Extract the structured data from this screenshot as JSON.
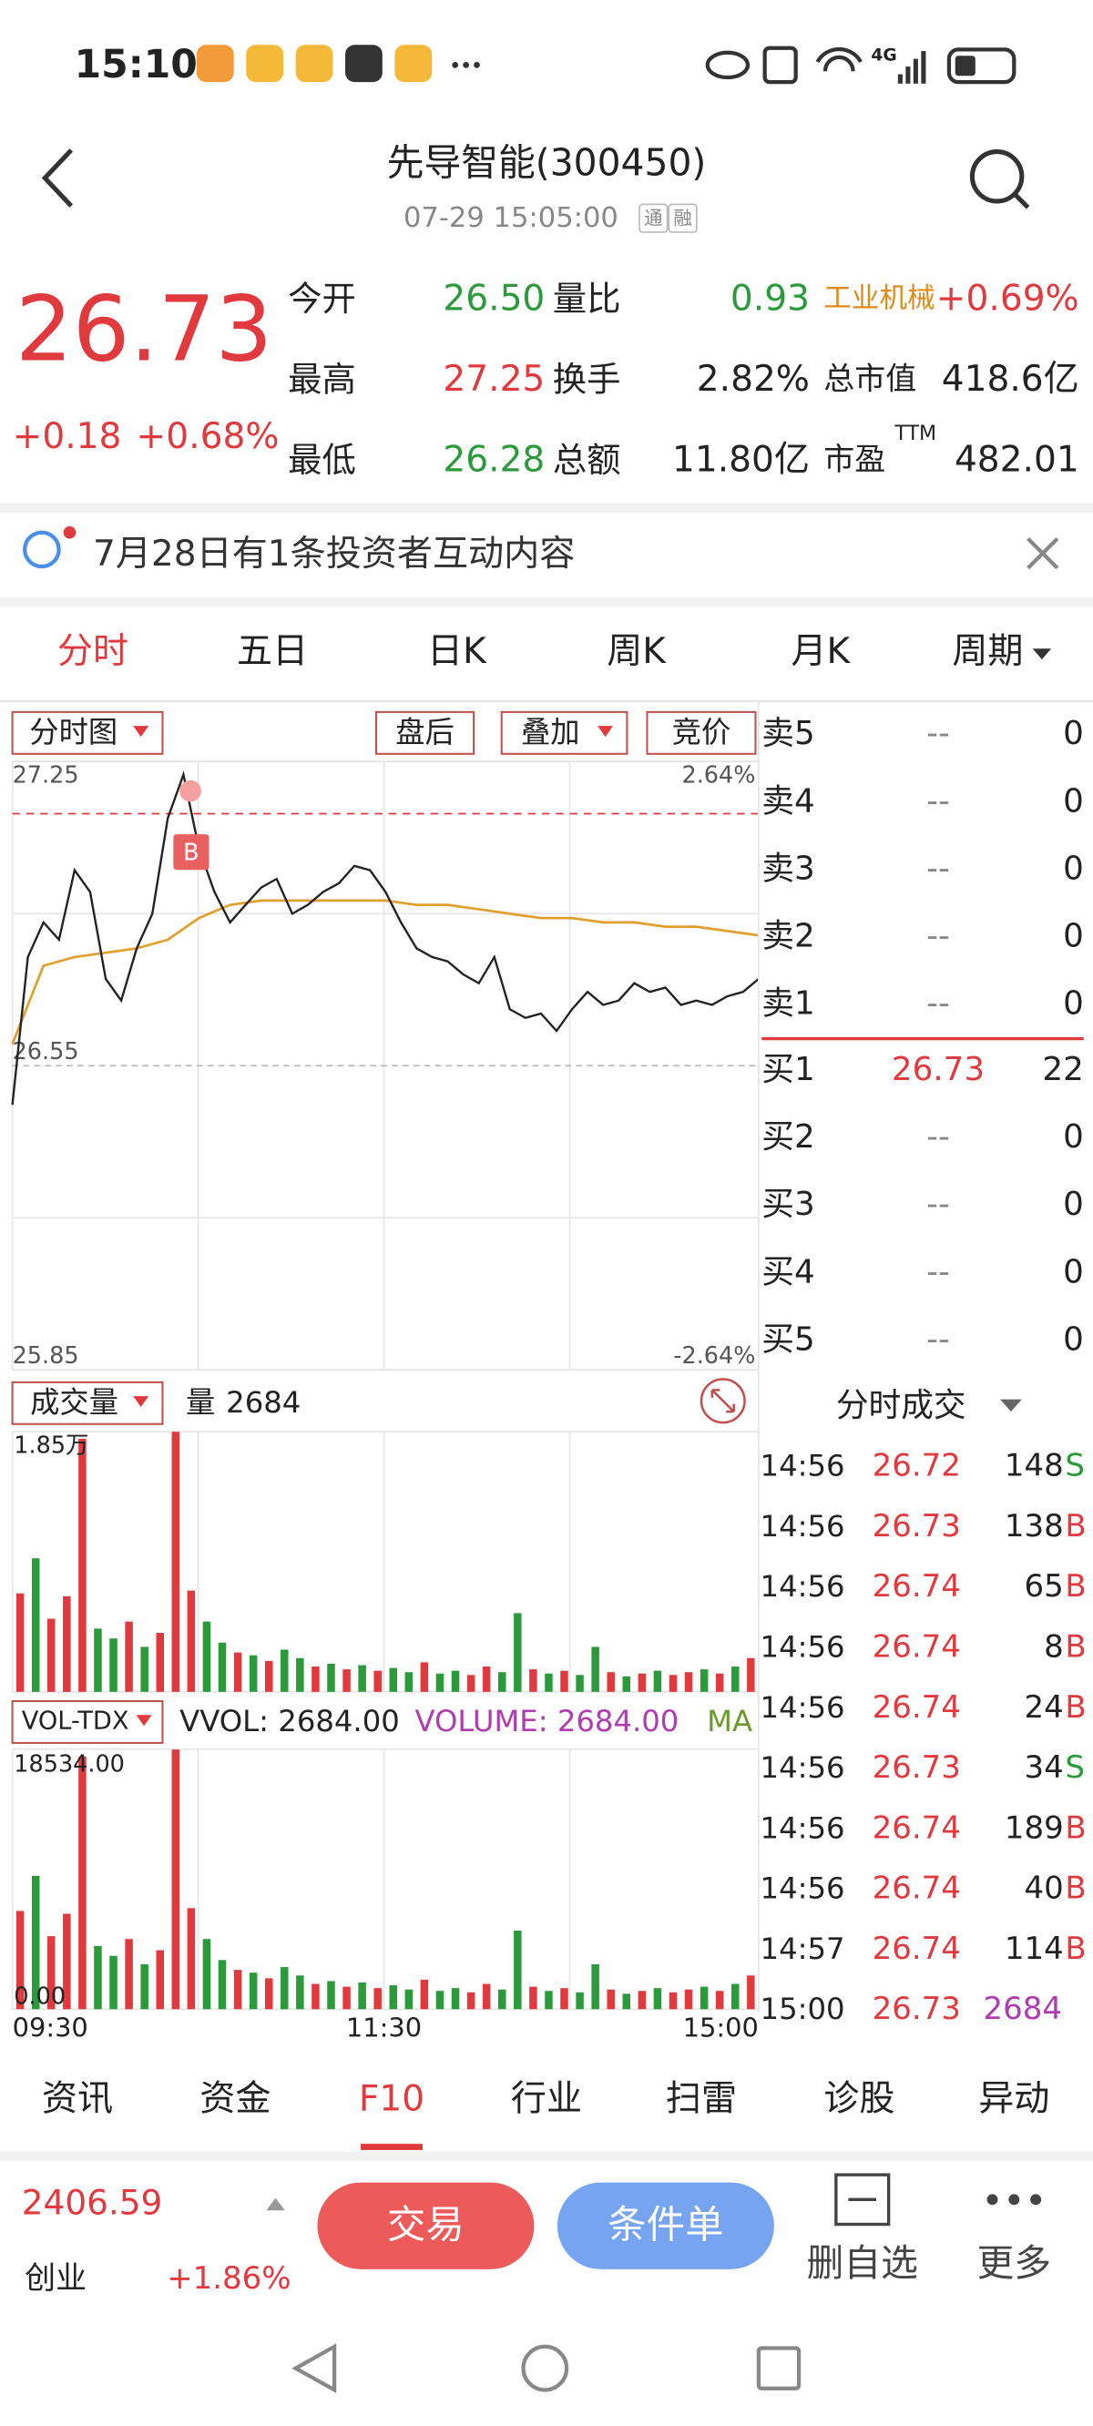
{
  "status_bar": {
    "time": "15:10",
    "network": "4G"
  },
  "header": {
    "title": "先导智能(300450)",
    "timestamp": "07-29 15:05:00",
    "badges": [
      "通",
      "融"
    ]
  },
  "quote": {
    "price": "26.73",
    "change": "+0.18",
    "change_pct": "+0.68%",
    "fields": [
      {
        "label": "今开",
        "value": "26.50",
        "color": "#2a9a3a"
      },
      {
        "label": "量比",
        "value": "0.93",
        "color": "#2a9a3a"
      },
      {
        "label": "工业机械",
        "value": "+0.69%",
        "color": "#e0393e"
      },
      {
        "label": "最高",
        "value": "27.25",
        "color": "#e0393e"
      },
      {
        "label": "换手",
        "value": "2.82%",
        "color": "#222222"
      },
      {
        "label": "总市值",
        "value": "418.6亿",
        "color": "#222222"
      },
      {
        "label": "最低",
        "value": "26.28",
        "color": "#2a9a3a"
      },
      {
        "label": "总额",
        "value": "11.80亿",
        "color": "#222222"
      },
      {
        "label": "市盈",
        "sup": "TTM",
        "value": "482.01",
        "color": "#222222"
      }
    ]
  },
  "notice": "7月28日有1条投资者互动内容",
  "tabs": [
    "分时",
    "五日",
    "日K",
    "周K",
    "月K",
    "周期"
  ],
  "chart_toolbar": [
    "分时图",
    "盘后",
    "叠加",
    "竞价"
  ],
  "intraday": {
    "ylim": [
      25.85,
      27.25
    ],
    "yticks": [
      27.25,
      26.55,
      25.85
    ],
    "pct_labels": [
      "2.64%",
      "-2.64%"
    ],
    "price_color": "#222222",
    "avg_color": "#e0a030",
    "marker": "B",
    "reference_line": 27.13,
    "price": [
      26.46,
      26.8,
      26.88,
      26.84,
      27.0,
      26.95,
      26.75,
      26.7,
      26.82,
      26.9,
      27.12,
      27.22,
      27.05,
      26.95,
      26.88,
      26.92,
      26.96,
      26.98,
      26.9,
      26.92,
      26.95,
      26.97,
      27.01,
      27.0,
      26.95,
      26.88,
      26.82,
      26.8,
      26.79,
      26.76,
      26.74,
      26.8,
      26.68,
      26.66,
      26.67,
      26.63,
      26.68,
      26.72,
      26.69,
      26.7,
      26.74,
      26.72,
      26.73,
      26.69,
      26.7,
      26.69,
      26.71,
      26.72,
      26.75
    ],
    "avg": [
      26.6,
      26.78,
      26.8,
      26.81,
      26.82,
      26.84,
      26.89,
      26.92,
      26.93,
      26.93,
      26.93,
      26.93,
      26.93,
      26.92,
      26.92,
      26.91,
      26.9,
      26.89,
      26.89,
      26.88,
      26.88,
      26.87,
      26.87,
      26.86,
      26.85
    ]
  },
  "time_labels": [
    "09:30",
    "11:30",
    "15:00"
  ],
  "order_book": [
    {
      "label": "卖5",
      "price": "--",
      "volume": "0"
    },
    {
      "label": "卖4",
      "price": "--",
      "volume": "0"
    },
    {
      "label": "卖3",
      "price": "--",
      "volume": "0"
    },
    {
      "label": "卖2",
      "price": "--",
      "volume": "0"
    },
    {
      "label": "卖1",
      "price": "--",
      "volume": "0"
    },
    {
      "label": "买1",
      "price": "26.73",
      "volume": "22"
    },
    {
      "label": "买2",
      "price": "--",
      "volume": "0"
    },
    {
      "label": "买3",
      "price": "--",
      "volume": "0"
    },
    {
      "label": "买4",
      "price": "--",
      "volume": "0"
    },
    {
      "label": "买5",
      "price": "--",
      "volume": "0"
    }
  ],
  "volume": {
    "title": "成交量",
    "current_label": "量",
    "current_value": "2684",
    "ylim": [
      0,
      18500
    ],
    "yticks": [
      {
        "value": 18500,
        "label": "1.85万"
      }
    ],
    "values": [
      7000,
      9500,
      5200,
      6800,
      18000,
      4500,
      3800,
      5000,
      3200,
      4200,
      18500,
      7200,
      5000,
      3500,
      2800,
      2600,
      2200,
      3000,
      2400,
      1800,
      2000,
      1600,
      1900,
      1500,
      1700,
      1400,
      2100,
      1300,
      1500,
      1200,
      1800,
      1400,
      5600,
      1600,
      1300,
      1500,
      1200,
      3200,
      1400,
      1100,
      1300,
      1500,
      1200,
      1400,
      1600,
      1300,
      1800,
      2400
    ],
    "colors": [
      "#e0393e",
      "#2a9a3a",
      "#e0393e",
      "#e0393e",
      "#e0393e",
      "#2a9a3a",
      "#2a9a3a",
      "#e0393e",
      "#2a9a3a",
      "#e0393e",
      "#e0393e",
      "#e0393e",
      "#2a9a3a",
      "#2a9a3a",
      "#e0393e",
      "#2a9a3a",
      "#e0393e",
      "#2a9a3a",
      "#2a9a3a",
      "#e0393e",
      "#2a9a3a",
      "#e0393e",
      "#2a9a3a",
      "#e0393e",
      "#2a9a3a",
      "#2a9a3a",
      "#e0393e",
      "#2a9a3a",
      "#2a9a3a",
      "#e0393e",
      "#e0393e",
      "#2a9a3a",
      "#2a9a3a",
      "#e0393e",
      "#2a9a3a",
      "#e0393e",
      "#2a9a3a",
      "#2a9a3a",
      "#e0393e",
      "#2a9a3a",
      "#e0393e",
      "#2a9a3a",
      "#e0393e",
      "#e0393e",
      "#2a9a3a",
      "#e0393e",
      "#2a9a3a",
      "#e0393e"
    ]
  },
  "vol_tdx": {
    "title": "VOL-TDX",
    "vvol": "VVOL: 2684.00",
    "volume": "VOLUME: 2684.00",
    "ma": "MA",
    "ylim": [
      0,
      18534
    ],
    "yticks": [
      {
        "value": 18534,
        "label": "18534.00"
      },
      {
        "value": 0,
        "label": "0.00"
      }
    ]
  },
  "trades_title": "分时成交",
  "trades": [
    {
      "time": "14:56",
      "price": "26.72",
      "volume": "148",
      "side": "S"
    },
    {
      "time": "14:56",
      "price": "26.73",
      "volume": "138",
      "side": "B"
    },
    {
      "time": "14:56",
      "price": "26.74",
      "volume": "65",
      "side": "B"
    },
    {
      "time": "14:56",
      "price": "26.74",
      "volume": "8",
      "side": "B"
    },
    {
      "time": "14:56",
      "price": "26.74",
      "volume": "24",
      "side": "B"
    },
    {
      "time": "14:56",
      "price": "26.73",
      "volume": "34",
      "side": "S"
    },
    {
      "time": "14:56",
      "price": "26.74",
      "volume": "189",
      "side": "B"
    },
    {
      "time": "14:56",
      "price": "26.74",
      "volume": "40",
      "side": "B"
    },
    {
      "time": "14:57",
      "price": "26.74",
      "volume": "114",
      "side": "B"
    },
    {
      "time": "15:00",
      "price": "26.73",
      "volume": "2684"
    }
  ],
  "bottom_tabs": [
    "资讯",
    "资金",
    "F10",
    "行业",
    "扫雷",
    "诊股",
    "异动"
  ],
  "index": {
    "value": "2406.59",
    "name": "创业",
    "change": "+1.86%"
  },
  "actions": [
    "交易",
    "条件单",
    "删自选",
    "更多"
  ]
}
